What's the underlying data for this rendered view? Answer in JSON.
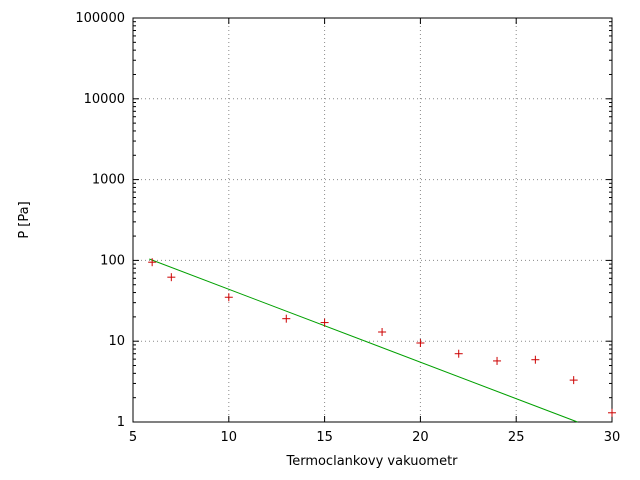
{
  "chart_data": {
    "type": "scatter",
    "title": "",
    "xlabel": "Termoclankovy vakuometr",
    "ylabel": "P [Pa]",
    "xlim": [
      5,
      30
    ],
    "ylim": [
      1,
      100000
    ],
    "xscale": "linear",
    "yscale": "log",
    "grid": true,
    "legend": "none",
    "xticks": [
      5,
      10,
      15,
      20,
      25,
      30
    ],
    "yticks": [
      1,
      10,
      100,
      1000,
      10000,
      100000
    ],
    "series": [
      {
        "name": "measured-points",
        "kind": "points",
        "marker": "plus",
        "color": "#cc0000",
        "points": [
          {
            "x": 6,
            "y": 95
          },
          {
            "x": 7,
            "y": 62
          },
          {
            "x": 10,
            "y": 35
          },
          {
            "x": 13,
            "y": 19
          },
          {
            "x": 15,
            "y": 17
          },
          {
            "x": 18,
            "y": 13
          },
          {
            "x": 20,
            "y": 9.5
          },
          {
            "x": 22,
            "y": 7
          },
          {
            "x": 24,
            "y": 5.7
          },
          {
            "x": 26,
            "y": 5.9
          },
          {
            "x": 28,
            "y": 3.3
          },
          {
            "x": 30,
            "y": 1.3
          }
        ]
      },
      {
        "name": "fit-line",
        "kind": "line",
        "color": "#00a000",
        "points": [
          {
            "x": 5.85,
            "y": 104
          },
          {
            "x": 28.2,
            "y": 1
          }
        ]
      }
    ],
    "axis_color": "#000000",
    "grid_color": "#8a8a8a",
    "background": "#ffffff"
  }
}
